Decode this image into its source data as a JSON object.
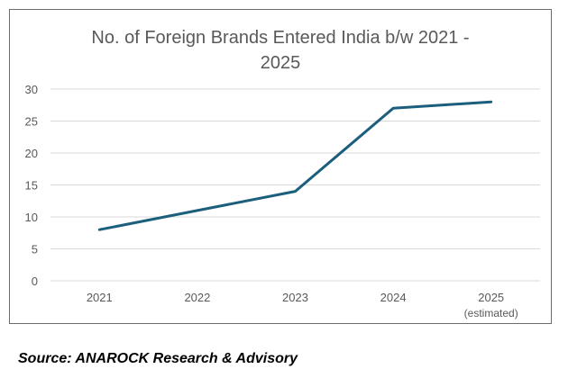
{
  "chart_data": {
    "type": "line",
    "title": "No. of Foreign Brands Entered India b/w 2021 - 2025",
    "categories": [
      "2021",
      "2022",
      "2023",
      "2024",
      "2025"
    ],
    "category_sublabels": [
      "",
      "",
      "",
      "",
      "(estimated)"
    ],
    "series": [
      {
        "values": [
          8,
          11,
          14,
          27,
          28
        ],
        "color": "#1b5f7c"
      }
    ],
    "xlabel": "",
    "ylabel": "",
    "ylim": [
      0,
      30
    ],
    "yticks": [
      0,
      5,
      10,
      15,
      20,
      25,
      30
    ],
    "grid": true,
    "legend": "none"
  },
  "source": "Source: ANAROCK Research & Advisory"
}
